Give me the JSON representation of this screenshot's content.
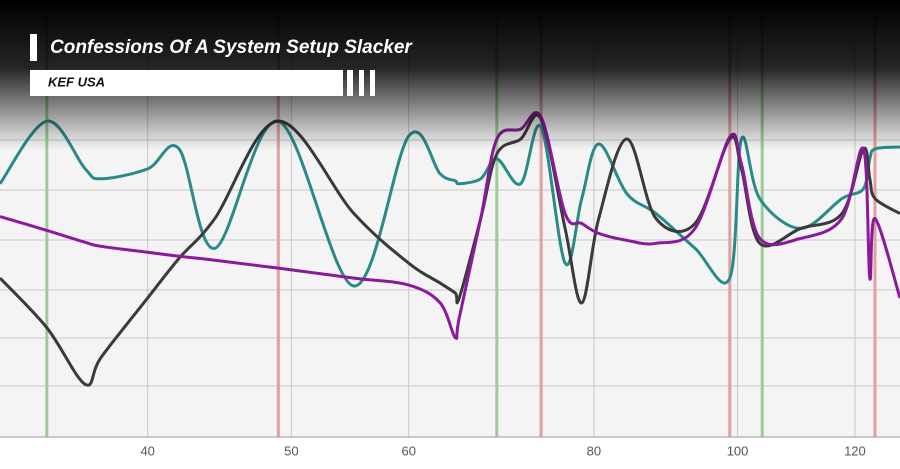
{
  "header": {
    "title": "Confessions Of A System Setup Slacker",
    "tag": "KEF USA"
  },
  "chart_data": {
    "type": "line",
    "log_x": true,
    "grid": true,
    "xlim": [
      31.8,
      128.7
    ],
    "xticks": [
      40,
      50,
      60,
      80,
      100,
      120
    ],
    "ylim": [
      0,
      440
    ],
    "markers": [
      {
        "x": 34.2,
        "color": "#9ccc94"
      },
      {
        "x": 68.8,
        "color": "#9ccc94"
      },
      {
        "x": 103.9,
        "color": "#9ccc94"
      },
      {
        "x": 49,
        "color": "#e0a0a0"
      },
      {
        "x": 73.7,
        "color": "#e0a0a0"
      },
      {
        "x": 98.8,
        "color": "#e0a0a0"
      },
      {
        "x": 123.8,
        "color": "#e0a0a0"
      }
    ],
    "x": [
      31.8,
      34.2,
      36.3,
      37.2,
      40,
      42,
      44.4,
      49,
      55.1,
      60,
      63,
      64.5,
      64.9,
      67.1,
      68.8,
      71.4,
      73.7,
      76.5,
      78.5,
      80.6,
      84.2,
      88.1,
      93.6,
      98.8,
      100.6,
      103.5,
      110.3,
      117.6,
      121.6,
      122.8,
      123.8,
      128.7
    ],
    "series": [
      {
        "color": "#2a8a8a",
        "values": [
          255,
          318,
          270,
          260,
          270,
          290,
          190,
          318,
          152,
          303,
          265,
          258,
          255,
          260,
          280,
          255,
          312,
          175,
          240,
          295,
          245,
          225,
          190,
          160,
          300,
          240,
          210,
          240,
          250,
          280,
          290,
          292
        ]
      },
      {
        "color": "#3a3a3a",
        "values": [
          160,
          110,
          53,
          80,
          140,
          180,
          220,
          318,
          225,
          175,
          155,
          145,
          140,
          220,
          285,
          300,
          320,
          210,
          135,
          220,
          300,
          220,
          215,
          300,
          270,
          195,
          210,
          225,
          290,
          260,
          240,
          225
        ]
      },
      {
        "color": "#8a1a9a",
        "values": [
          222,
          208,
          196,
          192,
          186,
          182,
          178,
          170,
          160,
          153,
          135,
          100,
          120,
          220,
          300,
          310,
          322,
          225,
          215,
          205,
          198,
          195,
          210,
          302,
          275,
          200,
          200,
          220,
          290,
          160,
          220,
          140
        ]
      }
    ]
  }
}
